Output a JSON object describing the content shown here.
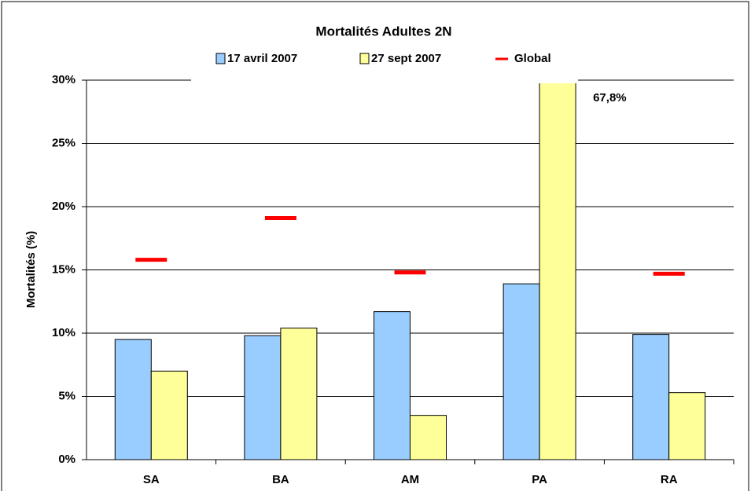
{
  "chart_data": {
    "type": "bar",
    "title": "Mortalités Adultes 2N",
    "y_label": "Mortalités (%)",
    "categories": [
      "SA",
      "BA",
      "AM",
      "PA",
      "RA"
    ],
    "series": [
      {
        "name": "17 avril 2007",
        "color": "#99ccff",
        "values": [
          9.5,
          9.8,
          11.7,
          13.9,
          9.9
        ]
      },
      {
        "name": "27 sept 2007",
        "color": "#ffff99",
        "values": [
          7.0,
          10.4,
          3.5,
          67.8,
          5.3
        ],
        "value_labels": [
          null,
          null,
          null,
          "67,8%",
          null
        ]
      },
      {
        "name": "Global",
        "color": "#ff0000",
        "style": "dash",
        "values": [
          15.8,
          19.1,
          14.8,
          null,
          14.7
        ]
      }
    ],
    "ylim": [
      0,
      30
    ],
    "yticks": [
      {
        "value": 0,
        "label": "0%"
      },
      {
        "value": 5,
        "label": "5%"
      },
      {
        "value": 10,
        "label": "10%"
      },
      {
        "value": 15,
        "label": "15%"
      },
      {
        "value": 20,
        "label": "20%"
      },
      {
        "value": 25,
        "label": "25%"
      },
      {
        "value": 30,
        "label": "30%"
      }
    ],
    "grid": true,
    "legend": "top"
  }
}
